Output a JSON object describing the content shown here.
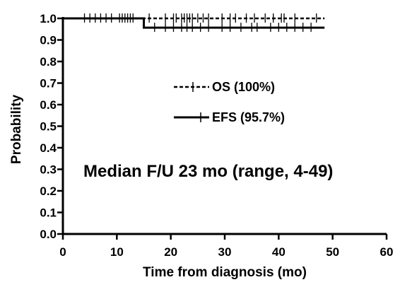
{
  "chart_data": {
    "type": "line",
    "xlabel": "Time from diagnosis (mo)",
    "ylabel": "Probability",
    "xlim": [
      0,
      60
    ],
    "ylim": [
      0,
      1
    ],
    "x_ticks": [
      0,
      10,
      20,
      30,
      40,
      50,
      60
    ],
    "y_ticks": [
      0.0,
      0.1,
      0.2,
      0.3,
      0.4,
      0.5,
      0.6,
      0.7,
      0.8,
      0.9,
      1.0
    ],
    "x_tick_labels": [
      "0",
      "10",
      "20",
      "30",
      "40",
      "50",
      "60"
    ],
    "y_tick_labels": [
      "0.0",
      "0.1",
      "0.2",
      "0.3",
      "0.4",
      "0.5",
      "0.6",
      "0.7",
      "0.8",
      "0.9",
      "1.0"
    ],
    "grid": false,
    "legend_placement": "center",
    "series": [
      {
        "name": "OS (100%)",
        "style": "dashed",
        "color": "#000000",
        "steps": [
          [
            0,
            1.0
          ],
          [
            48.5,
            1.0
          ]
        ],
        "censor_times": [
          4,
          5,
          6,
          7,
          8,
          9,
          10.5,
          11,
          11.5,
          12,
          12.5,
          13,
          16,
          19,
          20.5,
          21,
          22,
          22.5,
          23,
          23.5,
          24,
          25,
          26,
          27,
          29.5,
          31,
          32,
          34,
          35.5,
          37.5,
          39,
          40.5,
          41,
          43,
          47
        ]
      },
      {
        "name": "EFS (95.7%)",
        "style": "solid",
        "color": "#000000",
        "steps": [
          [
            0,
            1.0
          ],
          [
            15,
            1.0
          ],
          [
            15,
            0.957
          ],
          [
            48.5,
            0.957
          ]
        ],
        "censor_times": [
          17,
          19,
          20.5,
          22,
          23,
          24,
          25.5,
          27,
          29.5,
          31,
          33,
          35,
          36,
          38.5,
          40,
          41.5,
          43,
          44.5,
          46
        ]
      }
    ],
    "annotations": [
      "Median F/U 23 mo (range, 4-49)"
    ]
  }
}
